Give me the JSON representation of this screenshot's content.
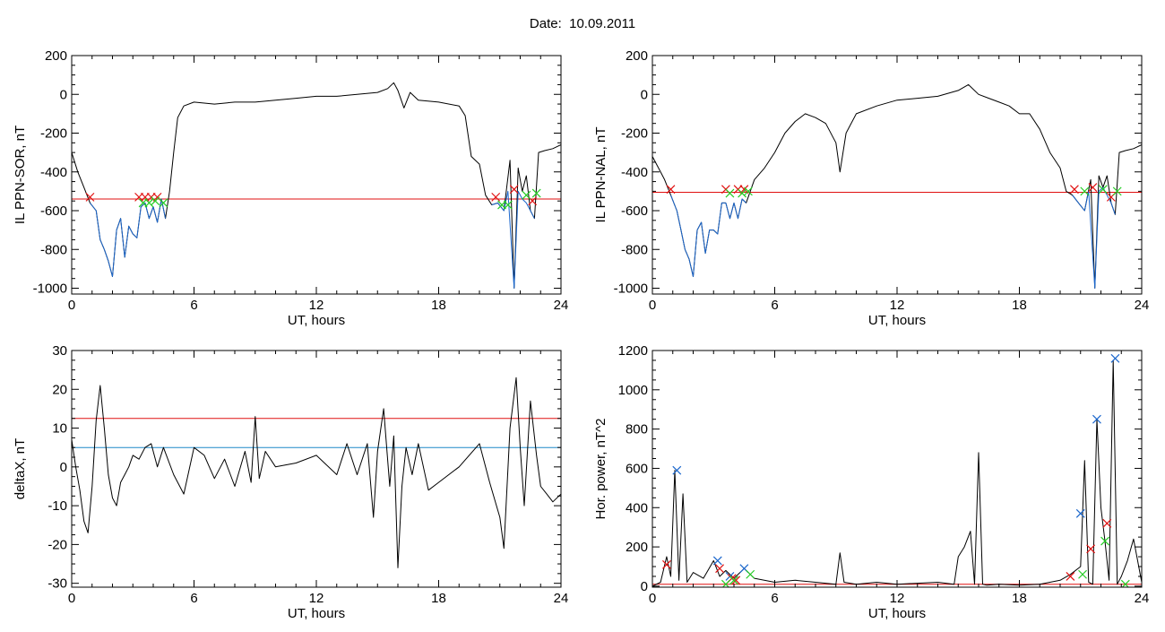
{
  "figure_title": "Date:  10.09.2011",
  "colors": {
    "black": "#000000",
    "red": "#e01010",
    "blue": "#1a66cc",
    "green": "#22cc22",
    "teal": "#1e88c8"
  },
  "chart_data": [
    {
      "id": "sor",
      "type": "line",
      "xlabel": "UT, hours",
      "ylabel": "IL PPN-SOR, nT",
      "xlim": [
        0,
        24
      ],
      "ylim": [
        -1030,
        200
      ],
      "xticks": [
        0,
        6,
        12,
        18,
        24
      ],
      "yticks": [
        -1000,
        -800,
        -600,
        -400,
        -200,
        0,
        200
      ],
      "series": [
        {
          "color": "black",
          "x": [
            0,
            0.3,
            0.6,
            0.9,
            1.2,
            1.4,
            1.6,
            1.8,
            2.0,
            2.2,
            2.4,
            2.6,
            2.8,
            3.0,
            3.2,
            3.4,
            3.6,
            3.8,
            4.0,
            4.2,
            4.4,
            4.6,
            4.8,
            5.0,
            5.2,
            5.5,
            6,
            7,
            8,
            9,
            10,
            11,
            12,
            13,
            14,
            15,
            15.5,
            15.8,
            16.0,
            16.3,
            16.6,
            17,
            18,
            19,
            19.3,
            19.6,
            20.0,
            20.3,
            20.6,
            20.9,
            21.2,
            21.5,
            21.7,
            21.9,
            22.1,
            22.3,
            22.5,
            22.7,
            22.9,
            23.2,
            23.6,
            24
          ],
          "y": [
            -300,
            -400,
            -480,
            -560,
            -600,
            -750,
            -800,
            -860,
            -940,
            -700,
            -640,
            -840,
            -680,
            -720,
            -740,
            -580,
            -560,
            -640,
            -580,
            -660,
            -540,
            -640,
            -500,
            -300,
            -120,
            -60,
            -40,
            -50,
            -40,
            -40,
            -30,
            -20,
            -10,
            -10,
            0,
            10,
            30,
            60,
            20,
            -70,
            10,
            -30,
            -40,
            -60,
            -110,
            -320,
            -360,
            -520,
            -570,
            -560,
            -600,
            -340,
            -1000,
            -380,
            -500,
            -420,
            -600,
            -640,
            -300,
            -290,
            -280,
            -260
          ]
        },
        {
          "color": "blue",
          "x": [
            0.9,
            1.2,
            1.4,
            1.6,
            1.8,
            2.0,
            2.2,
            2.4,
            2.6,
            2.8,
            3.0,
            3.2,
            3.4,
            3.6,
            3.8,
            4.0,
            4.2,
            4.4,
            4.6
          ],
          "y": [
            -560,
            -600,
            -750,
            -800,
            -860,
            -940,
            -700,
            -640,
            -840,
            -680,
            -720,
            -740,
            -580,
            -560,
            -640,
            -580,
            -660,
            -540,
            -640
          ]
        },
        {
          "color": "blue",
          "x": [
            20.6,
            20.9,
            21.2,
            21.4,
            21.7,
            21.9,
            22.1,
            22.3,
            22.5,
            22.7
          ],
          "y": [
            -570,
            -560,
            -600,
            -500,
            -1000,
            -500,
            -540,
            -560,
            -600,
            -640
          ]
        }
      ],
      "hlines": [
        {
          "y": -540,
          "color": "red"
        }
      ],
      "markers": [
        {
          "color": "red",
          "x": [
            0.9,
            3.3,
            3.6,
            3.9,
            4.2,
            20.8,
            21.7,
            22.6
          ],
          "y": [
            -530,
            -530,
            -530,
            -530,
            -530,
            -530,
            -490,
            -550
          ]
        },
        {
          "color": "green",
          "x": [
            3.5,
            3.8,
            4.1,
            4.5,
            21.1,
            21.4,
            22.3,
            22.8
          ],
          "y": [
            -560,
            -560,
            -550,
            -560,
            -570,
            -570,
            -520,
            -510
          ]
        }
      ]
    },
    {
      "id": "nal",
      "type": "line",
      "xlabel": "UT, hours",
      "ylabel": "IL PPN-NAL, nT",
      "xlim": [
        0,
        24
      ],
      "ylim": [
        -1030,
        200
      ],
      "xticks": [
        0,
        6,
        12,
        18,
        24
      ],
      "yticks": [
        -1000,
        -800,
        -600,
        -400,
        -200,
        0,
        200
      ],
      "series": [
        {
          "color": "black",
          "x": [
            0,
            0.3,
            0.6,
            0.9,
            1.2,
            1.4,
            1.6,
            1.8,
            2.0,
            2.2,
            2.4,
            2.6,
            2.8,
            3.0,
            3.2,
            3.4,
            3.6,
            3.8,
            4.0,
            4.2,
            4.4,
            4.6,
            5.0,
            5.5,
            6.0,
            6.5,
            7.0,
            7.5,
            8.0,
            8.5,
            9.0,
            9.2,
            9.5,
            10,
            11,
            12,
            13,
            14,
            15,
            15.5,
            16,
            16.5,
            17,
            17.5,
            18,
            18.5,
            19,
            19.5,
            20.0,
            20.3,
            20.6,
            20.9,
            21.2,
            21.5,
            21.7,
            21.9,
            22.1,
            22.3,
            22.5,
            22.7,
            22.9,
            23.2,
            23.6,
            24
          ],
          "y": [
            -320,
            -380,
            -440,
            -520,
            -600,
            -700,
            -800,
            -850,
            -940,
            -700,
            -660,
            -820,
            -700,
            -700,
            -720,
            -560,
            -560,
            -640,
            -560,
            -640,
            -540,
            -560,
            -440,
            -380,
            -300,
            -200,
            -140,
            -100,
            -120,
            -150,
            -250,
            -400,
            -200,
            -100,
            -60,
            -30,
            -20,
            -10,
            20,
            50,
            0,
            -20,
            -40,
            -60,
            -100,
            -100,
            -180,
            -300,
            -380,
            -500,
            -520,
            -560,
            -600,
            -440,
            -1000,
            -420,
            -480,
            -420,
            -560,
            -620,
            -300,
            -290,
            -280,
            -260
          ]
        },
        {
          "color": "blue",
          "x": [
            0.9,
            1.2,
            1.4,
            1.6,
            1.8,
            2.0,
            2.2,
            2.4,
            2.6,
            2.8,
            3.0,
            3.2,
            3.4,
            3.6,
            3.8,
            4.0,
            4.2,
            4.4,
            4.6
          ],
          "y": [
            -520,
            -600,
            -700,
            -800,
            -850,
            -940,
            -700,
            -660,
            -820,
            -700,
            -700,
            -720,
            -560,
            -560,
            -640,
            -560,
            -640,
            -540,
            -560
          ]
        },
        {
          "color": "blue",
          "x": [
            20.6,
            20.9,
            21.2,
            21.4,
            21.7,
            21.9,
            22.1,
            22.3,
            22.5,
            22.7
          ],
          "y": [
            -520,
            -560,
            -600,
            -500,
            -1000,
            -500,
            -480,
            -520,
            -560,
            -620
          ]
        }
      ],
      "hlines": [
        {
          "y": -505,
          "color": "red"
        }
      ],
      "markers": [
        {
          "color": "red",
          "x": [
            0.9,
            3.6,
            4.2,
            4.5,
            20.7,
            21.6,
            22.5
          ],
          "y": [
            -490,
            -490,
            -490,
            -490,
            -490,
            -480,
            -530
          ]
        },
        {
          "color": "green",
          "x": [
            3.8,
            4.4,
            4.7,
            21.2,
            22.1,
            22.8
          ],
          "y": [
            -510,
            -510,
            -500,
            -500,
            -490,
            -500
          ]
        }
      ]
    },
    {
      "id": "deltax",
      "type": "line",
      "xlabel": "UT, hours",
      "ylabel": "deltaX, nT",
      "xlim": [
        0,
        24
      ],
      "ylim": [
        -31,
        30
      ],
      "xticks": [
        0,
        6,
        12,
        18,
        24
      ],
      "yticks": [
        -30,
        -20,
        -10,
        0,
        10,
        20,
        30
      ],
      "series": [
        {
          "color": "black",
          "x": [
            0,
            0.2,
            0.4,
            0.6,
            0.8,
            1.0,
            1.2,
            1.4,
            1.6,
            1.8,
            2.0,
            2.2,
            2.4,
            2.6,
            2.8,
            3.0,
            3.3,
            3.6,
            3.9,
            4.2,
            4.5,
            5.0,
            5.5,
            6.0,
            6.5,
            7.0,
            7.5,
            8.0,
            8.5,
            8.8,
            9.0,
            9.2,
            9.5,
            10,
            11,
            12,
            13,
            13.5,
            14,
            14.5,
            14.8,
            15.0,
            15.3,
            15.6,
            15.8,
            16.0,
            16.2,
            16.4,
            16.7,
            17.0,
            17.5,
            18,
            19,
            20,
            20.5,
            21.0,
            21.2,
            21.5,
            21.8,
            22.0,
            22.2,
            22.5,
            22.8,
            23.0,
            23.3,
            23.6,
            24
          ],
          "y": [
            7,
            0,
            -6,
            -14,
            -17,
            -5,
            12,
            21,
            10,
            -2,
            -8,
            -10,
            -4,
            -2,
            0,
            3,
            2,
            5,
            6,
            0,
            5,
            -2,
            -7,
            5,
            3,
            -3,
            2,
            -5,
            4,
            -4,
            13,
            -3,
            4,
            0,
            1,
            3,
            -2,
            6,
            -2,
            6,
            -13,
            4,
            15,
            -5,
            8,
            -26,
            -5,
            5,
            -2,
            6,
            -6,
            -4,
            0,
            6,
            -4,
            -13,
            -21,
            10,
            23,
            5,
            -10,
            17,
            3,
            -5,
            -7,
            -9,
            -7
          ]
        }
      ],
      "hlines": [
        {
          "y": 12.5,
          "color": "red"
        },
        {
          "y": 5,
          "color": "teal"
        }
      ],
      "markers": []
    },
    {
      "id": "power",
      "type": "line",
      "xlabel": "UT, hours",
      "ylabel": "Hor. power, nT^2",
      "xlim": [
        0,
        24
      ],
      "ylim": [
        -5,
        1200
      ],
      "xticks": [
        0,
        6,
        12,
        18,
        24
      ],
      "yticks": [
        0,
        200,
        400,
        600,
        800,
        1000,
        1200
      ],
      "series": [
        {
          "color": "black",
          "x": [
            0,
            0.4,
            0.7,
            0.9,
            1.1,
            1.3,
            1.5,
            1.7,
            2.0,
            2.5,
            3.0,
            3.3,
            3.6,
            4.0,
            4.5,
            5.0,
            6,
            7,
            8,
            9.0,
            9.2,
            9.4,
            10,
            11,
            12,
            13,
            14,
            14.8,
            15.0,
            15.3,
            15.6,
            15.8,
            16.0,
            16.2,
            16.4,
            17,
            18,
            19,
            20,
            20.5,
            21.0,
            21.2,
            21.4,
            21.6,
            21.8,
            22.0,
            22.2,
            22.4,
            22.6,
            22.8,
            23.0,
            23.3,
            23.6,
            24
          ],
          "y": [
            0,
            20,
            150,
            50,
            590,
            30,
            470,
            20,
            70,
            40,
            130,
            50,
            80,
            40,
            90,
            40,
            20,
            30,
            20,
            10,
            170,
            20,
            10,
            20,
            10,
            15,
            20,
            10,
            150,
            200,
            280,
            10,
            680,
            10,
            5,
            10,
            5,
            10,
            30,
            60,
            100,
            640,
            20,
            10,
            850,
            400,
            230,
            30,
            1150,
            10,
            50,
            130,
            240,
            20
          ]
        }
      ],
      "hlines": [
        {
          "y": 10,
          "color": "red"
        }
      ],
      "markers": [
        {
          "color": "blue",
          "x": [
            1.2,
            3.2,
            3.8,
            4.5,
            21.0,
            21.8,
            22.7
          ],
          "y": [
            590,
            130,
            50,
            90,
            370,
            850,
            1160
          ]
        },
        {
          "color": "red",
          "x": [
            0.7,
            3.3,
            3.9,
            4.1,
            20.5,
            21.5,
            22.3
          ],
          "y": [
            110,
            90,
            40,
            30,
            50,
            190,
            320
          ]
        },
        {
          "color": "green",
          "x": [
            3.6,
            4.0,
            4.8,
            21.1,
            22.2,
            23.2
          ],
          "y": [
            10,
            30,
            60,
            60,
            230,
            10
          ]
        }
      ]
    }
  ]
}
